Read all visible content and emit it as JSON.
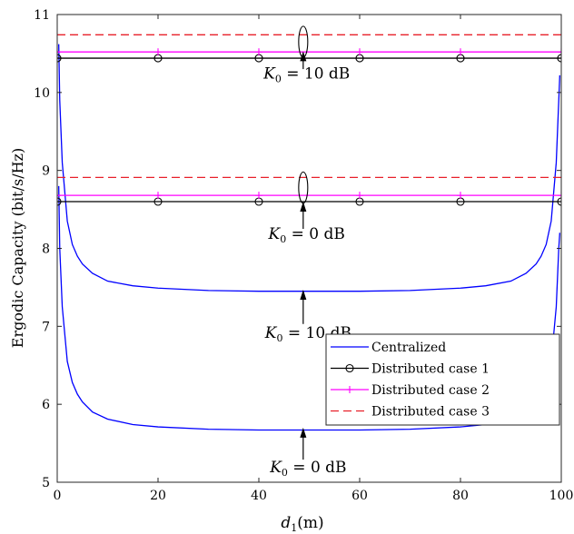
{
  "chart_data": {
    "type": "line",
    "xlabel": "d_1 (m)",
    "xlabel_main": "d",
    "xlabel_sub": "1",
    "xlabel_unit": "(m)",
    "ylabel": "Ergodic Capacity (bit/s/Hz)",
    "xlim": [
      0,
      100
    ],
    "ylim": [
      5,
      11
    ],
    "xticks": [
      0,
      20,
      40,
      60,
      80,
      100
    ],
    "yticks": [
      5,
      6,
      7,
      8,
      9,
      10,
      11
    ],
    "grid": false,
    "legend_position": "bottom-right",
    "series": [
      {
        "name": "Centralized",
        "style": "solid",
        "marker": "none",
        "color": "#0000ff",
        "group": "K0 = 10 dB",
        "x": [
          0.3,
          0.5,
          1,
          2,
          3,
          4,
          5,
          7,
          10,
          15,
          20,
          30,
          40,
          50,
          60,
          70,
          80,
          85,
          90,
          93,
          95,
          96,
          97,
          98,
          99,
          99.5,
          99.7
        ],
        "y": [
          10.62,
          9.9,
          9.1,
          8.35,
          8.05,
          7.9,
          7.8,
          7.68,
          7.58,
          7.52,
          7.49,
          7.46,
          7.45,
          7.45,
          7.45,
          7.46,
          7.49,
          7.52,
          7.58,
          7.68,
          7.8,
          7.9,
          8.05,
          8.35,
          9.1,
          9.9,
          10.22
        ]
      },
      {
        "name": "Centralized",
        "style": "solid",
        "marker": "none",
        "color": "#0000ff",
        "group": "K0 = 0 dB",
        "x": [
          0.3,
          0.5,
          1,
          2,
          3,
          4,
          5,
          7,
          10,
          15,
          20,
          30,
          40,
          50,
          60,
          70,
          80,
          85,
          90,
          93,
          95,
          96,
          97,
          98,
          99,
          99.5,
          99.7
        ],
        "y": [
          8.8,
          8.0,
          7.25,
          6.55,
          6.28,
          6.13,
          6.03,
          5.9,
          5.81,
          5.74,
          5.71,
          5.68,
          5.67,
          5.67,
          5.67,
          5.68,
          5.71,
          5.74,
          5.81,
          5.9,
          6.03,
          6.13,
          6.28,
          6.55,
          7.25,
          8.0,
          8.2
        ]
      },
      {
        "name": "Distributed case 1",
        "style": "solid",
        "marker": "circle",
        "color": "#000000",
        "group": "K0 = 10 dB",
        "x": [
          0,
          20,
          40,
          60,
          80,
          100
        ],
        "y": [
          10.44,
          10.44,
          10.44,
          10.44,
          10.44,
          10.44
        ]
      },
      {
        "name": "Distributed case 1",
        "style": "solid",
        "marker": "circle",
        "color": "#000000",
        "group": "K0 = 0 dB",
        "x": [
          0,
          20,
          40,
          60,
          80,
          100
        ],
        "y": [
          8.6,
          8.6,
          8.6,
          8.6,
          8.6,
          8.6
        ]
      },
      {
        "name": "Distributed case 2",
        "style": "solid",
        "marker": "plus",
        "color": "#ff00ff",
        "group": "K0 = 10 dB",
        "x": [
          0,
          20,
          40,
          60,
          80,
          100
        ],
        "y": [
          10.52,
          10.52,
          10.52,
          10.52,
          10.52,
          10.52
        ]
      },
      {
        "name": "Distributed case 2",
        "style": "solid",
        "marker": "plus",
        "color": "#ff00ff",
        "group": "K0 = 0 dB",
        "x": [
          0,
          20,
          40,
          60,
          80,
          100
        ],
        "y": [
          8.68,
          8.68,
          8.68,
          8.68,
          8.68,
          8.68
        ]
      },
      {
        "name": "Distributed case 3",
        "style": "dashed",
        "marker": "none",
        "color": "#e8202a",
        "group": "K0 = 10 dB",
        "x": [
          0,
          100
        ],
        "y": [
          10.74,
          10.74
        ]
      },
      {
        "name": "Distributed case 3",
        "style": "dashed",
        "marker": "none",
        "color": "#e8202a",
        "group": "K0 = 0 dB",
        "x": [
          0,
          100
        ],
        "y": [
          8.91,
          8.91
        ]
      }
    ],
    "legend": [
      "Centralized",
      "Distributed case 1",
      "Distributed case 2",
      "Distributed case 3"
    ],
    "annotations": [
      {
        "label_main": "K",
        "label_sub": "0",
        "label_rest": " = 10 dB",
        "tx": 49.5,
        "ty": 10.18,
        "arrow_from": [
          48.8,
          10.3
        ],
        "arrow_to": [
          48.8,
          10.53
        ],
        "ellipse": {
          "cx": 48.8,
          "cy": 10.65,
          "rx": 0.9,
          "ry": 0.2
        }
      },
      {
        "label_main": "K",
        "label_sub": "0",
        "label_rest": " = 0 dB",
        "tx": 49.5,
        "ty": 8.12,
        "arrow_from": [
          48.8,
          8.25
        ],
        "arrow_to": [
          48.8,
          8.6
        ],
        "ellipse": {
          "cx": 48.8,
          "cy": 8.78,
          "rx": 0.9,
          "ry": 0.2
        }
      },
      {
        "label_main": "K",
        "label_sub": "0",
        "label_rest": " = 10 dB",
        "tx": 49.8,
        "ty": 6.85,
        "arrow_from": [
          48.8,
          7.03
        ],
        "arrow_to": [
          48.8,
          7.47
        ]
      },
      {
        "label_main": "K",
        "label_sub": "0",
        "label_rest": " = 0 dB",
        "tx": 49.8,
        "ty": 5.13,
        "arrow_from": [
          48.8,
          5.29
        ],
        "arrow_to": [
          48.8,
          5.7
        ]
      }
    ]
  }
}
